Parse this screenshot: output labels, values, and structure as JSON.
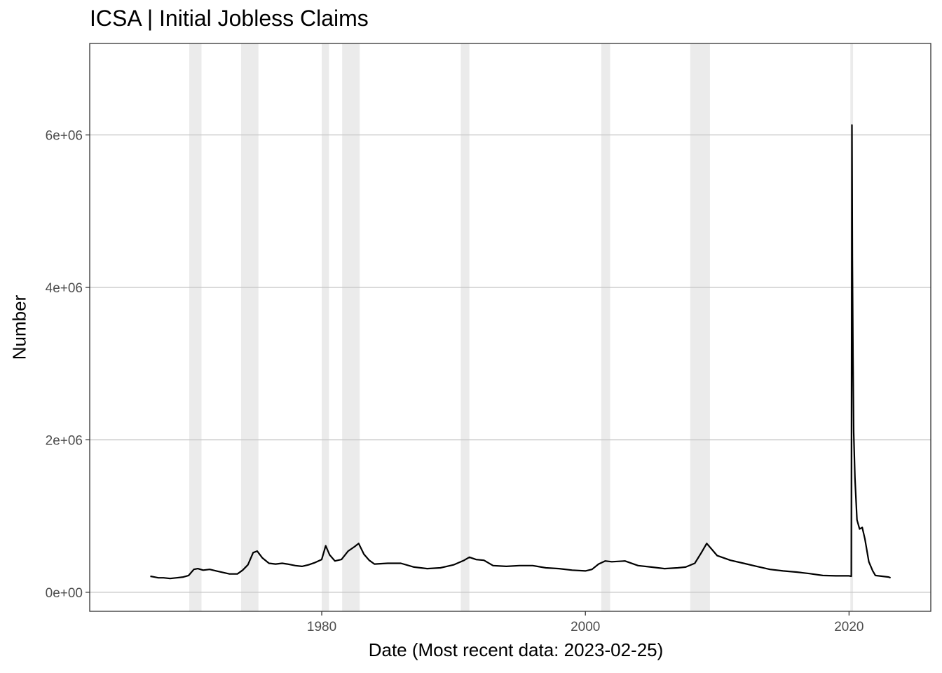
{
  "chart_data": {
    "type": "line",
    "title": "ICSA | Initial Jobless Claims",
    "xlabel": "Date (Most recent data: 2023-02-25)",
    "ylabel": "Number",
    "x_ticks": [
      1980,
      2000,
      2020
    ],
    "y_ticks": [
      {
        "value": 0,
        "label": "0e+00"
      },
      {
        "value": 2000000,
        "label": "2e+06"
      },
      {
        "value": 4000000,
        "label": "4e+06"
      },
      {
        "value": 6000000,
        "label": "6e+06"
      }
    ],
    "xlim": [
      1962.4,
      2026.2
    ],
    "ylim": [
      -250000,
      7200000
    ],
    "grid": true,
    "recessions": [
      {
        "start": 1969.95,
        "end": 1970.88
      },
      {
        "start": 1973.88,
        "end": 1975.2
      },
      {
        "start": 1980.0,
        "end": 1980.55
      },
      {
        "start": 1981.55,
        "end": 1982.88
      },
      {
        "start": 1990.55,
        "end": 1991.2
      },
      {
        "start": 2001.2,
        "end": 2001.88
      },
      {
        "start": 2007.95,
        "end": 2009.45
      },
      {
        "start": 2020.1,
        "end": 2020.3
      }
    ],
    "series": [
      {
        "values": [
          [
            1967.0,
            210000
          ],
          [
            1967.3,
            200000
          ],
          [
            1967.6,
            190000
          ],
          [
            1968.0,
            190000
          ],
          [
            1968.5,
            180000
          ],
          [
            1969.0,
            190000
          ],
          [
            1969.5,
            200000
          ],
          [
            1969.9,
            220000
          ],
          [
            1970.3,
            300000
          ],
          [
            1970.6,
            310000
          ],
          [
            1971.0,
            290000
          ],
          [
            1971.5,
            300000
          ],
          [
            1972.0,
            280000
          ],
          [
            1972.5,
            260000
          ],
          [
            1973.0,
            240000
          ],
          [
            1973.6,
            240000
          ],
          [
            1974.0,
            290000
          ],
          [
            1974.4,
            360000
          ],
          [
            1974.8,
            520000
          ],
          [
            1975.1,
            540000
          ],
          [
            1975.5,
            450000
          ],
          [
            1976.0,
            380000
          ],
          [
            1976.5,
            370000
          ],
          [
            1977.0,
            380000
          ],
          [
            1977.4,
            370000
          ],
          [
            1978.0,
            350000
          ],
          [
            1978.5,
            340000
          ],
          [
            1979.0,
            360000
          ],
          [
            1979.5,
            390000
          ],
          [
            1980.0,
            430000
          ],
          [
            1980.3,
            610000
          ],
          [
            1980.6,
            490000
          ],
          [
            1981.0,
            410000
          ],
          [
            1981.5,
            430000
          ],
          [
            1982.0,
            540000
          ],
          [
            1982.5,
            600000
          ],
          [
            1982.8,
            640000
          ],
          [
            1983.2,
            500000
          ],
          [
            1983.6,
            420000
          ],
          [
            1984.0,
            370000
          ],
          [
            1985.0,
            380000
          ],
          [
            1986.0,
            380000
          ],
          [
            1987.0,
            330000
          ],
          [
            1988.0,
            310000
          ],
          [
            1989.0,
            320000
          ],
          [
            1990.0,
            360000
          ],
          [
            1990.8,
            420000
          ],
          [
            1991.2,
            460000
          ],
          [
            1991.7,
            430000
          ],
          [
            1992.3,
            420000
          ],
          [
            1993.0,
            350000
          ],
          [
            1994.0,
            340000
          ],
          [
            1995.0,
            350000
          ],
          [
            1996.0,
            350000
          ],
          [
            1997.0,
            320000
          ],
          [
            1998.0,
            310000
          ],
          [
            1999.0,
            290000
          ],
          [
            2000.0,
            280000
          ],
          [
            2000.5,
            300000
          ],
          [
            2001.0,
            370000
          ],
          [
            2001.5,
            410000
          ],
          [
            2002.0,
            400000
          ],
          [
            2003.0,
            410000
          ],
          [
            2004.0,
            350000
          ],
          [
            2005.0,
            330000
          ],
          [
            2006.0,
            310000
          ],
          [
            2007.0,
            320000
          ],
          [
            2007.6,
            330000
          ],
          [
            2008.3,
            380000
          ],
          [
            2008.8,
            520000
          ],
          [
            2009.2,
            640000
          ],
          [
            2009.6,
            560000
          ],
          [
            2010.0,
            480000
          ],
          [
            2011.0,
            420000
          ],
          [
            2012.0,
            380000
          ],
          [
            2013.0,
            340000
          ],
          [
            2014.0,
            300000
          ],
          [
            2015.0,
            280000
          ],
          [
            2016.0,
            265000
          ],
          [
            2017.0,
            245000
          ],
          [
            2018.0,
            220000
          ],
          [
            2019.0,
            215000
          ],
          [
            2020.0,
            215000
          ],
          [
            2020.17,
            210000
          ],
          [
            2020.2,
            3300000
          ],
          [
            2020.22,
            6130000
          ],
          [
            2020.25,
            4400000
          ],
          [
            2020.3,
            3100000
          ],
          [
            2020.35,
            2100000
          ],
          [
            2020.45,
            1500000
          ],
          [
            2020.6,
            950000
          ],
          [
            2020.8,
            830000
          ],
          [
            2021.0,
            850000
          ],
          [
            2021.2,
            700000
          ],
          [
            2021.5,
            400000
          ],
          [
            2021.8,
            280000
          ],
          [
            2022.0,
            220000
          ],
          [
            2022.5,
            210000
          ],
          [
            2023.0,
            200000
          ],
          [
            2023.15,
            190000
          ]
        ]
      }
    ]
  }
}
